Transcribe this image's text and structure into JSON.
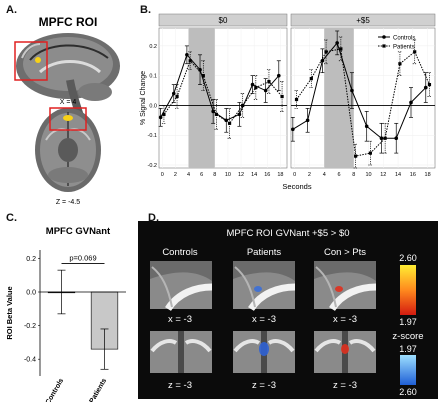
{
  "panel_labels": {
    "a": "A.",
    "b": "B.",
    "c": "C.",
    "d": "D."
  },
  "panelA": {
    "title": "MPFC ROI",
    "x_label": "X = 4",
    "z_label": "Z = -4.5"
  },
  "chart_data": [
    {
      "type": "line",
      "facet": "$0",
      "x": [
        0,
        2,
        4,
        6,
        8,
        10,
        12,
        14,
        16,
        18
      ],
      "xlabel": "Seconds",
      "ylabel": "% Signal Change",
      "xlim": [
        -0.5,
        19
      ],
      "ylim": [
        -0.21,
        0.26
      ],
      "yticks": [
        -0.2,
        -0.1,
        0.0,
        0.1,
        0.2
      ],
      "ytick_labels": [
        "-0.2",
        "-0.1",
        "0.0",
        "0.1",
        "0.2"
      ],
      "shaded_region": [
        4,
        8
      ],
      "series": [
        {
          "name": "Controls",
          "values": [
            -0.04,
            0.04,
            0.17,
            0.12,
            -0.02,
            -0.05,
            -0.03,
            0.07,
            0.05,
            0.1
          ],
          "err": [
            0.03,
            0.03,
            0.03,
            0.05,
            0.04,
            0.04,
            0.04,
            0.03,
            0.04,
            0.05
          ]
        },
        {
          "name": "Patients",
          "values": [
            -0.03,
            0.03,
            0.15,
            0.1,
            -0.03,
            -0.06,
            0.0,
            0.06,
            0.08,
            0.03
          ],
          "err": [
            0.03,
            0.04,
            0.03,
            0.05,
            0.05,
            0.05,
            0.04,
            0.04,
            0.04,
            0.05
          ]
        }
      ]
    },
    {
      "type": "line",
      "facet": "+$5",
      "x": [
        0,
        2,
        4,
        6,
        8,
        10,
        12,
        14,
        16,
        18
      ],
      "xlabel": "Seconds",
      "xlim": [
        -0.5,
        19
      ],
      "ylim": [
        -0.21,
        0.26
      ],
      "shaded_region": [
        4,
        8
      ],
      "series": [
        {
          "name": "Controls",
          "values": [
            -0.08,
            -0.05,
            0.15,
            0.21,
            0.05,
            -0.07,
            -0.11,
            -0.11,
            0.01,
            0.06
          ],
          "err": [
            0.04,
            0.04,
            0.04,
            0.04,
            0.06,
            0.05,
            0.05,
            0.05,
            0.05,
            0.05
          ]
        },
        {
          "name": "Patients",
          "values": [
            0.02,
            0.09,
            0.18,
            0.19,
            -0.17,
            -0.16,
            -0.11,
            0.14,
            0.18,
            0.07
          ],
          "err": [
            0.03,
            0.03,
            0.04,
            0.04,
            0.04,
            0.04,
            0.05,
            0.04,
            0.04,
            0.04
          ]
        }
      ]
    },
    {
      "type": "bar",
      "title": "MPFC GVNant",
      "categories": [
        "Controls",
        "Patients"
      ],
      "values": [
        0.0,
        -0.34
      ],
      "err": [
        0.13,
        0.12
      ],
      "ylabel": "ROI Beta Value",
      "ylim": [
        -0.5,
        0.25
      ],
      "yticks": [
        0.2,
        0.0,
        -0.2,
        -0.4
      ],
      "ytick_labels": [
        "0.2",
        "0.0",
        "-0.2",
        "-0.4"
      ],
      "annotation": "p=0.069"
    }
  ],
  "panelD": {
    "title": "MPFC ROI GVNant +$5 > $0",
    "columns": [
      "Controls",
      "Patients",
      "Con > Pts"
    ],
    "row1_labels": [
      "x = -3",
      "x = -3",
      "x = -3"
    ],
    "row2_labels": [
      "z = -3",
      "z = -3",
      "z = -3"
    ],
    "colorbar_top_max": "2.60",
    "colorbar_top_min": "1.97",
    "colorbar_title": "z-score",
    "colorbar_bot_min": "1.97",
    "colorbar_bot_max": "2.60",
    "colors": {
      "hot_high": "#ffee33",
      "hot_low": "#d41b10",
      "cool_low": "#9ee0ff",
      "cool_high": "#1f5fd6"
    }
  }
}
